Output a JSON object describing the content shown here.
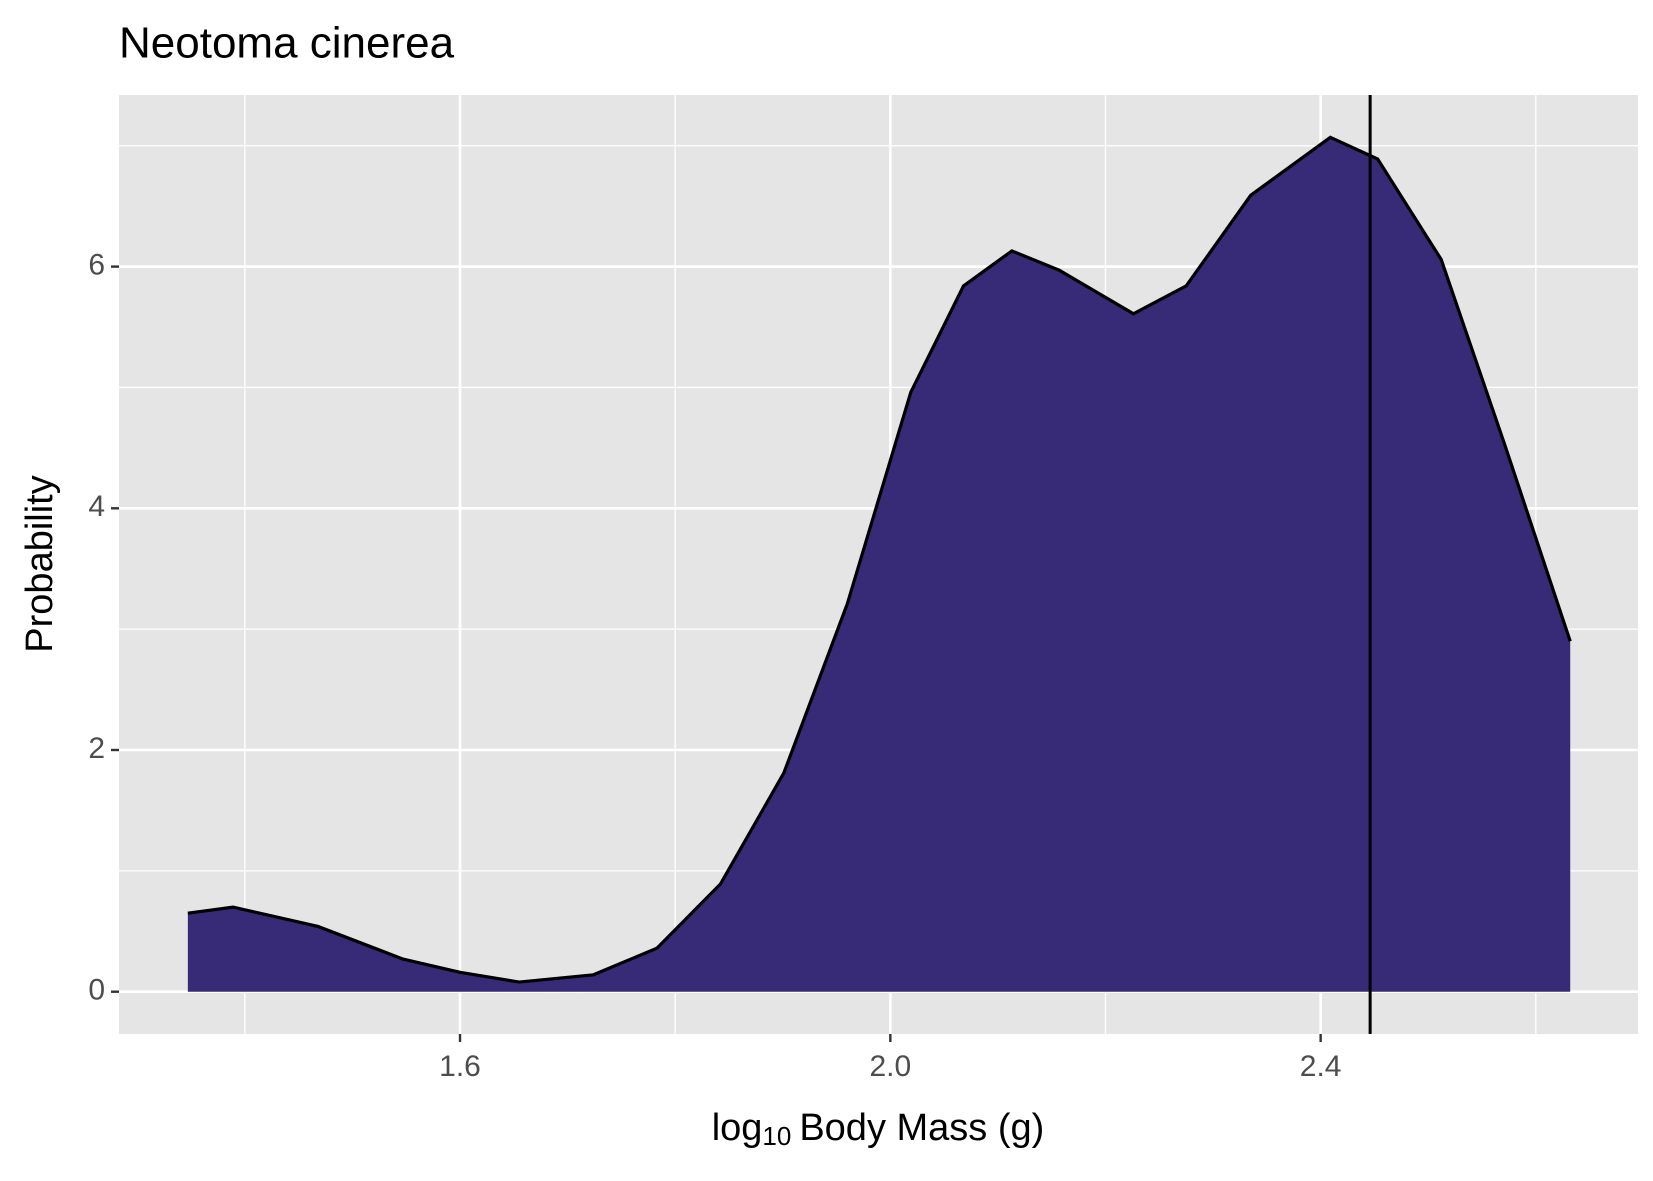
{
  "chart_data": {
    "type": "area",
    "title": "Neotoma cinerea",
    "x_label": {
      "base": "log",
      "subscript": "10",
      "rest": "Body Mass (g)"
    },
    "y_label": "Probability",
    "x": [
      1.347,
      1.389,
      1.468,
      1.547,
      1.6,
      1.655,
      1.724,
      1.783,
      1.842,
      1.901,
      1.96,
      2.019,
      2.068,
      2.113,
      2.157,
      2.226,
      2.275,
      2.335,
      2.409,
      2.453,
      2.512,
      2.571,
      2.632
    ],
    "series": [
      {
        "color": "#372a77",
        "values": [
          0.65,
          0.7,
          0.54,
          0.27,
          0.16,
          0.08,
          0.14,
          0.36,
          0.89,
          1.81,
          3.21,
          4.96,
          5.84,
          6.13,
          5.97,
          5.61,
          5.84,
          6.59,
          7.07,
          6.89,
          6.06,
          4.53,
          2.9
        ]
      }
    ],
    "vline": 2.446,
    "xlim": [
      1.283,
      2.695
    ],
    "xticks": [
      1.6,
      {
        "value": 2.0,
        "label": "2.0"
      },
      2.4
    ],
    "ylim": [
      -0.35,
      7.42
    ],
    "yticks": [
      0,
      2,
      4,
      6
    ],
    "grid": true
  }
}
